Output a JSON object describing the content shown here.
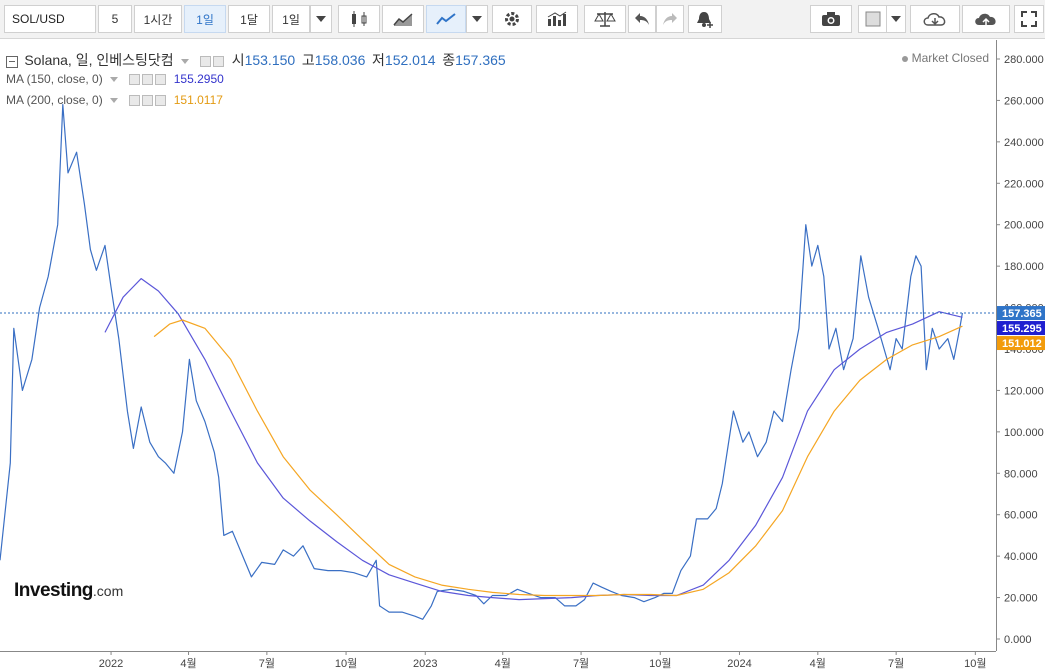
{
  "toolbar": {
    "symbol": "SOL/USD",
    "intervals": [
      "5",
      "1시간",
      "1일",
      "1달",
      "1일"
    ],
    "active_interval_index": 2,
    "icons": [
      "candles-icon",
      "area-chart-icon",
      "line-chart-icon",
      "chevron-down-icon",
      "gear-icon",
      "indicators-icon",
      "scales-icon",
      "undo-icon",
      "redo-icon",
      "alert-add-icon",
      "camera-icon",
      "square-icon",
      "cloud-download-icon",
      "cloud-upload-icon",
      "fullscreen-icon"
    ]
  },
  "legend": {
    "title": "Solana, 일, 인베스팅닷컴",
    "open_label": "시",
    "open": "153.150",
    "high_label": "고",
    "high": "158.036",
    "low_label": "저",
    "low": "152.014",
    "close_label": "종",
    "close": "157.365",
    "ma150_label": "MA (150, close, 0)",
    "ma150_value": "155.2950",
    "ma200_label": "MA (200, close, 0)",
    "ma200_value": "151.0117",
    "status": "Market Closed"
  },
  "logo": {
    "main": "Investing",
    "suffix": ".com"
  },
  "colors": {
    "price": "#3a6fc4",
    "ma150": "#5b57d9",
    "ma200": "#f5a623",
    "last_price_tag": "#2f74c8",
    "ma150_tag": "#1f1fd0",
    "ma200_tag": "#f29b0b"
  },
  "chart_data": {
    "type": "line",
    "ylim": [
      0,
      290
    ],
    "y_ticks": [
      0,
      20,
      40,
      60,
      80,
      100,
      120,
      140,
      160,
      180,
      200,
      220,
      240,
      260,
      280
    ],
    "y_tick_labels": [
      "0.000",
      "20.000",
      "40.000",
      "60.000",
      "80.000",
      "100.000",
      "120.000",
      "140.000",
      "160.000",
      "180.000",
      "200.000",
      "220.000",
      "240.000",
      "260.000",
      "280.000"
    ],
    "x_range": [
      "2021-08-25",
      "2024-10-25"
    ],
    "x_ticks": [
      {
        "date": "2022-01-01",
        "label": "2022"
      },
      {
        "date": "2022-04-01",
        "label": "4월"
      },
      {
        "date": "2022-07-01",
        "label": "7월"
      },
      {
        "date": "2022-10-01",
        "label": "10월"
      },
      {
        "date": "2023-01-01",
        "label": "2023"
      },
      {
        "date": "2023-04-01",
        "label": "4월"
      },
      {
        "date": "2023-07-01",
        "label": "7월"
      },
      {
        "date": "2023-10-01",
        "label": "10월"
      },
      {
        "date": "2024-01-01",
        "label": "2024"
      },
      {
        "date": "2024-04-01",
        "label": "4월"
      },
      {
        "date": "2024-07-01",
        "label": "7월"
      },
      {
        "date": "2024-10-01",
        "label": "10월"
      }
    ],
    "price_tags": [
      {
        "value": 157.365,
        "label": "157.365",
        "color": "#2f74c8"
      },
      {
        "value": 155.295,
        "label": "155.295",
        "color": "#1f1fd0"
      },
      {
        "value": 151.012,
        "label": "151.012",
        "color": "#f29b0b"
      }
    ],
    "series": [
      {
        "name": "Solana",
        "color": "#3a6fc4",
        "points": [
          [
            "2021-08-25",
            38
          ],
          [
            "2021-09-06",
            85
          ],
          [
            "2021-09-10",
            150
          ],
          [
            "2021-09-20",
            120
          ],
          [
            "2021-10-01",
            135
          ],
          [
            "2021-10-10",
            160
          ],
          [
            "2021-10-20",
            175
          ],
          [
            "2021-10-31",
            200
          ],
          [
            "2021-11-06",
            258
          ],
          [
            "2021-11-12",
            225
          ],
          [
            "2021-11-22",
            235
          ],
          [
            "2021-12-01",
            210
          ],
          [
            "2021-12-08",
            188
          ],
          [
            "2021-12-15",
            178
          ],
          [
            "2021-12-25",
            190
          ],
          [
            "2022-01-01",
            170
          ],
          [
            "2022-01-10",
            145
          ],
          [
            "2022-01-20",
            110
          ],
          [
            "2022-01-27",
            92
          ],
          [
            "2022-02-05",
            112
          ],
          [
            "2022-02-15",
            95
          ],
          [
            "2022-02-25",
            88
          ],
          [
            "2022-03-05",
            85
          ],
          [
            "2022-03-15",
            80
          ],
          [
            "2022-03-25",
            100
          ],
          [
            "2022-04-02",
            135
          ],
          [
            "2022-04-10",
            115
          ],
          [
            "2022-04-20",
            105
          ],
          [
            "2022-05-01",
            90
          ],
          [
            "2022-05-06",
            78
          ],
          [
            "2022-05-12",
            50
          ],
          [
            "2022-05-22",
            52
          ],
          [
            "2022-06-01",
            42
          ],
          [
            "2022-06-13",
            30
          ],
          [
            "2022-06-25",
            37
          ],
          [
            "2022-07-10",
            36
          ],
          [
            "2022-07-20",
            43
          ],
          [
            "2022-08-01",
            40
          ],
          [
            "2022-08-12",
            45
          ],
          [
            "2022-08-25",
            34
          ],
          [
            "2022-09-10",
            33
          ],
          [
            "2022-09-25",
            33
          ],
          [
            "2022-10-10",
            32
          ],
          [
            "2022-10-25",
            30
          ],
          [
            "2022-11-05",
            38
          ],
          [
            "2022-11-09",
            16
          ],
          [
            "2022-11-20",
            13
          ],
          [
            "2022-12-05",
            13
          ],
          [
            "2022-12-20",
            11
          ],
          [
            "2022-12-29",
            9.5
          ],
          [
            "2023-01-08",
            16
          ],
          [
            "2023-01-15",
            23
          ],
          [
            "2023-01-31",
            24
          ],
          [
            "2023-02-15",
            23
          ],
          [
            "2023-03-01",
            21
          ],
          [
            "2023-03-10",
            17
          ],
          [
            "2023-03-20",
            21
          ],
          [
            "2023-04-05",
            21
          ],
          [
            "2023-04-18",
            24
          ],
          [
            "2023-05-01",
            22
          ],
          [
            "2023-05-15",
            20
          ],
          [
            "2023-06-01",
            20
          ],
          [
            "2023-06-12",
            16
          ],
          [
            "2023-06-25",
            16
          ],
          [
            "2023-07-05",
            19
          ],
          [
            "2023-07-15",
            27
          ],
          [
            "2023-07-25",
            25
          ],
          [
            "2023-08-05",
            23
          ],
          [
            "2023-08-17",
            21
          ],
          [
            "2023-09-01",
            20
          ],
          [
            "2023-09-12",
            18
          ],
          [
            "2023-09-25",
            20
          ],
          [
            "2023-10-05",
            22
          ],
          [
            "2023-10-15",
            22
          ],
          [
            "2023-10-25",
            33
          ],
          [
            "2023-11-05",
            40
          ],
          [
            "2023-11-12",
            58
          ],
          [
            "2023-11-25",
            58
          ],
          [
            "2023-12-05",
            63
          ],
          [
            "2023-12-12",
            75
          ],
          [
            "2023-12-25",
            110
          ],
          [
            "2024-01-05",
            95
          ],
          [
            "2024-01-12",
            100
          ],
          [
            "2024-01-22",
            88
          ],
          [
            "2024-02-01",
            95
          ],
          [
            "2024-02-10",
            110
          ],
          [
            "2024-02-20",
            105
          ],
          [
            "2024-03-01",
            130
          ],
          [
            "2024-03-10",
            150
          ],
          [
            "2024-03-18",
            200
          ],
          [
            "2024-03-25",
            180
          ],
          [
            "2024-04-01",
            190
          ],
          [
            "2024-04-08",
            175
          ],
          [
            "2024-04-14",
            140
          ],
          [
            "2024-04-22",
            150
          ],
          [
            "2024-05-01",
            130
          ],
          [
            "2024-05-12",
            145
          ],
          [
            "2024-05-21",
            185
          ],
          [
            "2024-05-30",
            165
          ],
          [
            "2024-06-10",
            150
          ],
          [
            "2024-06-24",
            130
          ],
          [
            "2024-07-01",
            145
          ],
          [
            "2024-07-08",
            140
          ],
          [
            "2024-07-18",
            175
          ],
          [
            "2024-07-24",
            185
          ],
          [
            "2024-07-30",
            180
          ],
          [
            "2024-08-05",
            130
          ],
          [
            "2024-08-12",
            150
          ],
          [
            "2024-08-20",
            140
          ],
          [
            "2024-08-30",
            145
          ],
          [
            "2024-09-06",
            135
          ],
          [
            "2024-09-12",
            148
          ],
          [
            "2024-09-16",
            157.365
          ]
        ]
      },
      {
        "name": "MA (150, close, 0)",
        "color": "#5b57d9",
        "points": [
          [
            "2021-12-25",
            148
          ],
          [
            "2022-01-15",
            165
          ],
          [
            "2022-02-05",
            174
          ],
          [
            "2022-02-25",
            168
          ],
          [
            "2022-03-20",
            157
          ],
          [
            "2022-04-20",
            135
          ],
          [
            "2022-05-20",
            110
          ],
          [
            "2022-06-20",
            85
          ],
          [
            "2022-07-20",
            68
          ],
          [
            "2022-08-20",
            57
          ],
          [
            "2022-09-20",
            47
          ],
          [
            "2022-10-20",
            38
          ],
          [
            "2022-11-20",
            31
          ],
          [
            "2022-12-20",
            27
          ],
          [
            "2023-01-20",
            23
          ],
          [
            "2023-02-20",
            21
          ],
          [
            "2023-03-20",
            20
          ],
          [
            "2023-04-20",
            19
          ],
          [
            "2023-05-20",
            19.5
          ],
          [
            "2023-06-20",
            20
          ],
          [
            "2023-07-20",
            21
          ],
          [
            "2023-08-20",
            21.5
          ],
          [
            "2023-09-20",
            21
          ],
          [
            "2023-10-20",
            21
          ],
          [
            "2023-11-20",
            26
          ],
          [
            "2023-12-20",
            38
          ],
          [
            "2024-01-20",
            55
          ],
          [
            "2024-02-20",
            78
          ],
          [
            "2024-03-20",
            110
          ],
          [
            "2024-04-20",
            130
          ],
          [
            "2024-05-20",
            140
          ],
          [
            "2024-06-20",
            148
          ],
          [
            "2024-07-20",
            152
          ],
          [
            "2024-08-20",
            158
          ],
          [
            "2024-09-16",
            155.295
          ]
        ]
      },
      {
        "name": "MA (200, close, 0)",
        "color": "#f5a623",
        "points": [
          [
            "2022-02-20",
            146
          ],
          [
            "2022-03-10",
            152
          ],
          [
            "2022-03-25",
            154
          ],
          [
            "2022-04-20",
            150
          ],
          [
            "2022-05-20",
            135
          ],
          [
            "2022-06-20",
            110
          ],
          [
            "2022-07-20",
            88
          ],
          [
            "2022-08-20",
            72
          ],
          [
            "2022-09-20",
            60
          ],
          [
            "2022-10-20",
            48
          ],
          [
            "2022-11-20",
            36
          ],
          [
            "2022-12-20",
            30
          ],
          [
            "2023-01-20",
            26
          ],
          [
            "2023-02-20",
            24
          ],
          [
            "2023-03-20",
            22.5
          ],
          [
            "2023-04-20",
            21.5
          ],
          [
            "2023-05-20",
            21
          ],
          [
            "2023-06-20",
            21
          ],
          [
            "2023-07-20",
            21
          ],
          [
            "2023-08-20",
            21.5
          ],
          [
            "2023-09-20",
            21.5
          ],
          [
            "2023-10-20",
            21
          ],
          [
            "2023-11-20",
            24
          ],
          [
            "2023-12-20",
            32
          ],
          [
            "2024-01-20",
            45
          ],
          [
            "2024-02-20",
            62
          ],
          [
            "2024-03-20",
            88
          ],
          [
            "2024-04-20",
            110
          ],
          [
            "2024-05-20",
            125
          ],
          [
            "2024-06-20",
            135
          ],
          [
            "2024-07-20",
            142
          ],
          [
            "2024-08-20",
            146
          ],
          [
            "2024-09-16",
            151.012
          ]
        ]
      }
    ]
  }
}
